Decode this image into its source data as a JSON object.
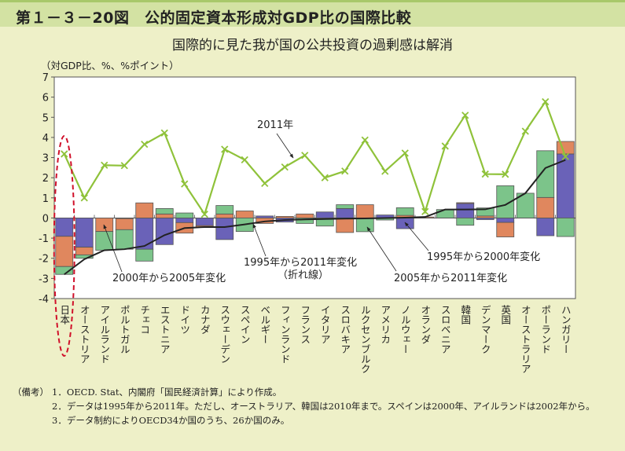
{
  "header": {
    "title": "第１－３－20図　公的固定資本形成対GDP比の国際比較"
  },
  "chart_data": {
    "type": "bar",
    "subtitle": "国際的に見た我が国の公共投資の過剰感は解消",
    "ylabel": "（対GDP比、%、%ポイント）",
    "ylim": [
      -4,
      7
    ],
    "yticks": [
      -4,
      -3,
      -2,
      -1,
      0,
      1,
      2,
      3,
      4,
      5,
      6,
      7
    ],
    "grid": false,
    "categories": [
      "日本",
      "オーストリア",
      "アイルランド",
      "ポルトガル",
      "チェコ",
      "エストニア",
      "ドイツ",
      "カナダ",
      "スウェーデン",
      "スペイン",
      "ベルギー",
      "フィンランド",
      "フランス",
      "イタリア",
      "スロバキア",
      "ルクセンブルク",
      "アメリカ",
      "ノルウェー",
      "オランダ",
      "スロベニア",
      "韓国",
      "デンマーク",
      "英国",
      "オーストラリア",
      "ポーランド",
      "ハンガリー"
    ],
    "series": [
      {
        "name": "1995年から2000年変化",
        "kind": "stacked-bar",
        "color": "#6a62b8",
        "values": [
          -0.91,
          -1.45,
          0,
          -0.03,
          -1.55,
          -1.32,
          -0.23,
          -0.38,
          -1.07,
          0,
          0.1,
          -0.2,
          0,
          0.3,
          0.47,
          0,
          0.15,
          -0.53,
          0,
          0,
          0.72,
          -0.08,
          -0.22,
          0,
          -0.88,
          3.18
        ]
      },
      {
        "name": "2000年から2005年変化",
        "kind": "stacked-bar",
        "color": "#e0875e",
        "values": [
          -1.5,
          -0.38,
          -0.67,
          -0.55,
          0.75,
          0.2,
          -0.52,
          -0.07,
          0.2,
          0.35,
          -0.27,
          0.08,
          0.2,
          0,
          -0.72,
          0.66,
          0,
          0.13,
          0.05,
          0,
          0.04,
          0.1,
          -0.72,
          0,
          1.02,
          0.62
        ]
      },
      {
        "name": "2005年から2011年変化",
        "kind": "stacked-bar",
        "color": "#7cc48a",
        "values": [
          -0.39,
          -0.17,
          -0.93,
          -0.97,
          -0.59,
          0.27,
          0.25,
          0,
          0.42,
          -0.67,
          0,
          0,
          -0.27,
          -0.4,
          0.19,
          -0.68,
          -0.1,
          0.38,
          0,
          0.42,
          -0.36,
          0.4,
          1.6,
          1.23,
          2.32,
          -0.92
        ]
      },
      {
        "name": "1995年から2011年変化（折れ線）",
        "kind": "line",
        "color": "#222222",
        "values": [
          -2.8,
          -2.05,
          -1.6,
          -1.55,
          -1.39,
          -0.85,
          -0.5,
          -0.45,
          -0.45,
          -0.32,
          -0.17,
          -0.1,
          -0.07,
          -0.05,
          -0.03,
          -0.02,
          0,
          0.02,
          0.05,
          0.42,
          0.42,
          0.43,
          0.65,
          1.23,
          2.48,
          2.88
        ]
      },
      {
        "name": "2011年",
        "kind": "line-marker",
        "color": "#8fc23a",
        "values": [
          3.18,
          1.0,
          2.62,
          2.6,
          3.66,
          4.22,
          1.69,
          0.19,
          3.41,
          2.89,
          1.72,
          2.53,
          3.11,
          2.0,
          2.33,
          3.87,
          2.32,
          3.22,
          0.32,
          3.57,
          5.1,
          2.18,
          2.17,
          4.31,
          5.77,
          3.05
        ]
      }
    ],
    "annotations": {
      "y2011": "2011年",
      "s9500": "1995年から2000年変化",
      "s0005": "2000年から2005年変化",
      "s0511": "2005年から2011年変化",
      "s9511a": "1995年から2011年変化",
      "s9511b": "（折れ線）"
    },
    "highlight_color": "#d0102a"
  },
  "notes": {
    "label": "（備考）",
    "items": [
      "1．OECD. Stat、内閣府「国民経済計算」により作成。",
      "2．データは1995年から2011年。ただし、オーストラリア、韓国は2010年まで。スペインは2000年、アイルランドは2002年から。",
      "3．データ制約によりOECD34か国のうち、26か国のみ。"
    ]
  }
}
